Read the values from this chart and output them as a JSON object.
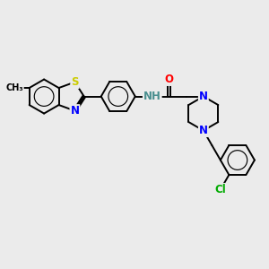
{
  "background_color": "#ebebeb",
  "atom_colors": {
    "S": "#cccc00",
    "N": "#0000ff",
    "O": "#ff0000",
    "Cl": "#00aa00",
    "H": "#4a8f8f",
    "C": "#000000"
  },
  "bond_color": "#000000",
  "bond_width": 1.4,
  "font_size": 8.5,
  "figsize": [
    3.0,
    3.0
  ],
  "dpi": 100
}
